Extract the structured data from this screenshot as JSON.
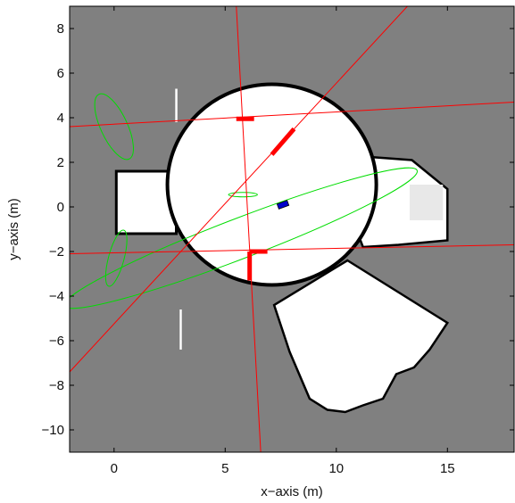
{
  "chart_data": {
    "type": "scatter",
    "title": "",
    "xlabel": "x−axis (m)",
    "ylabel": "y−axis (m)",
    "xlim": [
      -2,
      18
    ],
    "ylim": [
      -11,
      9
    ],
    "xticks": [
      0,
      5,
      10,
      15
    ],
    "xtick_labels": [
      "0",
      "5",
      "10",
      "15"
    ],
    "yticks": [
      8,
      6,
      4,
      2,
      0,
      -2,
      -4,
      -6,
      -8,
      -10
    ],
    "ytick_labels": [
      "8",
      "6",
      "4",
      "2",
      "0",
      "−2",
      "−4",
      "−6",
      "−8",
      "−10"
    ],
    "grid": false,
    "legend": "none",
    "colors": {
      "background": "#808080",
      "free_space": "#ffffff",
      "free_space_light": "#e8e8e8",
      "obstacle": "#000000",
      "line": "#ff0000",
      "landmark": "#ff0000",
      "ellipse": "#00dd00",
      "robot": "#0000cc"
    },
    "map": {
      "hall_center": [
        7.1,
        1.0
      ],
      "hall_radius": [
        4.7,
        4.5
      ],
      "corridor_left": [
        [
          0.1,
          1.6
        ],
        [
          2.8,
          1.6
        ],
        [
          2.8,
          -1.2
        ],
        [
          0.1,
          -1.2
        ]
      ],
      "wedge_right": [
        [
          10.7,
          2.3
        ],
        [
          13.4,
          2.1
        ],
        [
          15.0,
          0.8
        ],
        [
          15.0,
          -1.5
        ],
        [
          12.8,
          -1.7
        ],
        [
          11.2,
          -1.8
        ],
        [
          10.7,
          -0.5
        ]
      ],
      "wedge_right_light": [
        [
          13.3,
          1.0
        ],
        [
          14.8,
          1.0
        ],
        [
          14.8,
          -0.6
        ],
        [
          13.3,
          -0.6
        ]
      ],
      "wedge_lower": [
        [
          10.5,
          -2.4
        ],
        [
          15.0,
          -5.2
        ],
        [
          14.2,
          -6.4
        ],
        [
          13.5,
          -7.2
        ],
        [
          12.7,
          -7.5
        ],
        [
          12.1,
          -8.6
        ],
        [
          11.2,
          -8.9
        ],
        [
          10.4,
          -9.2
        ],
        [
          9.6,
          -9.1
        ],
        [
          8.8,
          -8.6
        ],
        [
          7.9,
          -6.5
        ],
        [
          7.2,
          -4.4
        ]
      ],
      "post_top": [
        [
          2.75,
          5.3
        ],
        [
          2.85,
          5.3
        ],
        [
          2.85,
          3.8
        ],
        [
          2.75,
          3.8
        ]
      ],
      "post_bottom": [
        [
          2.95,
          -4.6
        ],
        [
          3.05,
          -4.6
        ],
        [
          3.05,
          -6.4
        ],
        [
          2.95,
          -6.4
        ]
      ]
    },
    "lines": [
      {
        "x": [
          -2,
          18
        ],
        "y": [
          3.6,
          4.7
        ]
      },
      {
        "x": [
          -2,
          18
        ],
        "y": [
          -2.1,
          -1.7
        ]
      },
      {
        "x": [
          5.5,
          6.6
        ],
        "y": [
          9.0,
          -11.0
        ]
      },
      {
        "x": [
          -2,
          13.2
        ],
        "y": [
          -7.4,
          9.0
        ]
      }
    ],
    "landmarks": [
      {
        "x": [
          5.5,
          6.3
        ],
        "y": [
          3.95,
          3.95
        ]
      },
      {
        "x": [
          7.1,
          8.1
        ],
        "y": [
          2.35,
          3.5
        ]
      },
      {
        "x": [
          6.1,
          6.9
        ],
        "y": [
          -2.0,
          -2.0
        ]
      },
      {
        "x": [
          6.1,
          6.1
        ],
        "y": [
          -2.0,
          -3.3
        ]
      }
    ],
    "ellipses": [
      {
        "cx": 0.0,
        "cy": 3.6,
        "rx": 0.6,
        "ry": 1.6,
        "rotation": 25
      },
      {
        "cx": 0.1,
        "cy": -2.3,
        "rx": 0.35,
        "ry": 1.3,
        "rotation": -15
      },
      {
        "cx": 5.8,
        "cy": 0.55,
        "rx": 0.65,
        "ry": 0.1,
        "rotation": 0
      },
      {
        "cx": 5.7,
        "cy": -1.4,
        "rx": 8.5,
        "ry": 0.9,
        "rotation": 21
      }
    ],
    "robot": {
      "x": 7.6,
      "y": 0.1,
      "heading": 20
    }
  }
}
